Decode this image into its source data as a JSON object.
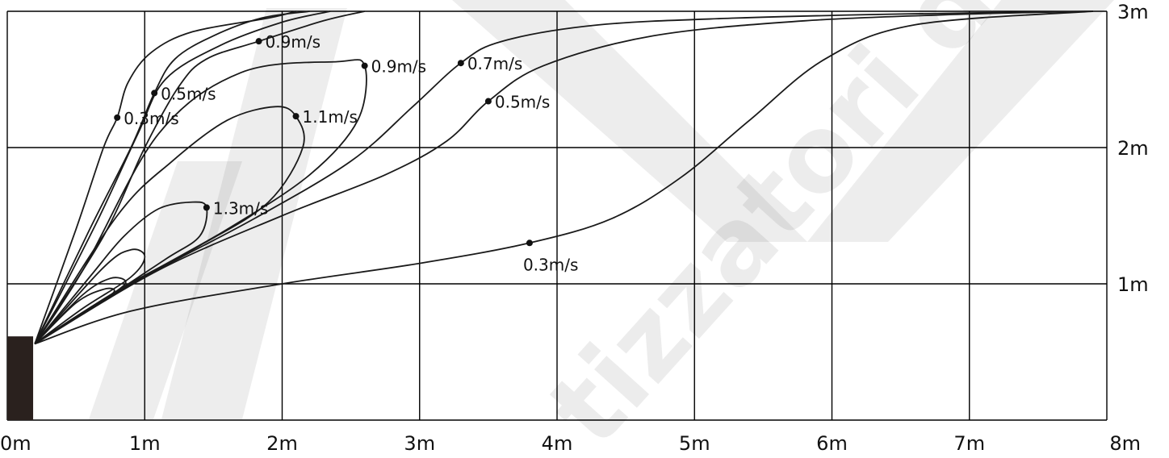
{
  "chart_data": {
    "type": "line",
    "title": "",
    "xlabel": "",
    "ylabel": "",
    "xlim": [
      0,
      8
    ],
    "ylim": [
      0,
      3
    ],
    "grid": true,
    "x_ticks": [
      "0m",
      "1m",
      "2m",
      "3m",
      "4m",
      "5m",
      "6m",
      "7m",
      "8m"
    ],
    "y_ticks": [
      "1m",
      "2m",
      "3m"
    ],
    "source_marker": {
      "x": [
        0,
        0.2
      ],
      "y": [
        0,
        0.65
      ]
    },
    "series": [
      {
        "points": [
          [
            0.2,
            0.56
          ],
          [
            0.45,
            0.72
          ],
          [
            0.7,
            0.88
          ],
          [
            0.78,
            0.95
          ],
          [
            0.7,
            0.96
          ],
          [
            0.5,
            0.86
          ],
          [
            0.2,
            0.56
          ]
        ]
      },
      {
        "points": [
          [
            0.2,
            0.56
          ],
          [
            0.5,
            0.76
          ],
          [
            0.8,
            0.95
          ],
          [
            0.86,
            1.02
          ],
          [
            0.75,
            1.04
          ],
          [
            0.55,
            0.92
          ],
          [
            0.2,
            0.56
          ]
        ]
      },
      {
        "points": [
          [
            0.2,
            0.56
          ],
          [
            0.55,
            0.82
          ],
          [
            0.9,
            1.05
          ],
          [
            1.0,
            1.2
          ],
          [
            0.9,
            1.25
          ],
          [
            0.7,
            1.12
          ],
          [
            0.2,
            0.56
          ]
        ]
      },
      {
        "label": "1.3m/s",
        "label_point": [
          1.45,
          1.56
        ],
        "points": [
          [
            0.2,
            0.56
          ],
          [
            0.7,
            0.88
          ],
          [
            1.15,
            1.18
          ],
          [
            1.4,
            1.35
          ],
          [
            1.45,
            1.56
          ],
          [
            1.35,
            1.6
          ],
          [
            1.1,
            1.55
          ],
          [
            0.85,
            1.35
          ],
          [
            0.6,
            1.05
          ],
          [
            0.2,
            0.56
          ]
        ]
      },
      {
        "label": "1.1m/s",
        "label_point": [
          2.1,
          2.23
        ],
        "points": [
          [
            0.2,
            0.56
          ],
          [
            0.8,
            0.95
          ],
          [
            1.4,
            1.28
          ],
          [
            1.9,
            1.6
          ],
          [
            2.15,
            2.0
          ],
          [
            2.1,
            2.23
          ],
          [
            1.95,
            2.3
          ],
          [
            1.6,
            2.2
          ],
          [
            1.2,
            1.9
          ],
          [
            0.8,
            1.5
          ],
          [
            0.2,
            0.56
          ]
        ]
      },
      {
        "label": "0.9m/s",
        "label_point": [
          2.6,
          2.6
        ],
        "points": [
          [
            0.2,
            0.56
          ],
          [
            0.9,
            1.0
          ],
          [
            1.6,
            1.4
          ],
          [
            2.2,
            1.8
          ],
          [
            2.55,
            2.2
          ],
          [
            2.6,
            2.6
          ],
          [
            2.4,
            2.63
          ],
          [
            1.7,
            2.55
          ],
          [
            1.1,
            2.1
          ],
          [
            0.55,
            1.1
          ],
          [
            0.2,
            0.56
          ]
        ]
      },
      {
        "label": "0.7m/s",
        "label_point": [
          3.3,
          2.62
        ],
        "points": [
          [
            0.2,
            0.56
          ],
          [
            1.0,
            1.05
          ],
          [
            1.8,
            1.48
          ],
          [
            2.5,
            1.9
          ],
          [
            2.95,
            2.3
          ],
          [
            3.3,
            2.62
          ],
          [
            3.6,
            2.78
          ],
          [
            4.3,
            2.9
          ],
          [
            5.3,
            2.95
          ],
          [
            6.5,
            2.98
          ],
          [
            7.9,
            3.0
          ]
        ]
      },
      {
        "label": "0.5m/s",
        "label_point": [
          3.5,
          2.34
        ],
        "points": [
          [
            0.2,
            0.56
          ],
          [
            1.1,
            1.1
          ],
          [
            2.0,
            1.5
          ],
          [
            2.75,
            1.8
          ],
          [
            3.2,
            2.05
          ],
          [
            3.5,
            2.34
          ],
          [
            3.9,
            2.6
          ],
          [
            4.7,
            2.82
          ],
          [
            5.8,
            2.93
          ],
          [
            7.0,
            2.98
          ],
          [
            7.9,
            3.0
          ]
        ]
      },
      {
        "label": "0.3m/s",
        "label_point": [
          3.8,
          1.3
        ],
        "points": [
          [
            0.2,
            0.56
          ],
          [
            0.9,
            0.8
          ],
          [
            2.0,
            1.0
          ],
          [
            3.0,
            1.15
          ],
          [
            3.8,
            1.3
          ],
          [
            4.4,
            1.48
          ],
          [
            4.9,
            1.78
          ],
          [
            5.4,
            2.2
          ],
          [
            5.95,
            2.65
          ],
          [
            6.6,
            2.9
          ],
          [
            7.9,
            3.0
          ]
        ]
      },
      {
        "label": "0.3m/s",
        "label_point": [
          0.8,
          2.22
        ],
        "points": [
          [
            0.2,
            0.56
          ],
          [
            0.5,
            1.4
          ],
          [
            0.7,
            2.0
          ],
          [
            0.8,
            2.22
          ],
          [
            0.88,
            2.48
          ],
          [
            1.05,
            2.7
          ],
          [
            1.35,
            2.85
          ],
          [
            1.9,
            2.95
          ],
          [
            2.1,
            3.0
          ]
        ]
      },
      {
        "label": "0.5m/s",
        "label_point": [
          1.07,
          2.4
        ],
        "points": [
          [
            0.2,
            0.56
          ],
          [
            0.6,
            1.4
          ],
          [
            0.9,
            2.0
          ],
          [
            1.07,
            2.4
          ],
          [
            1.22,
            2.65
          ],
          [
            1.5,
            2.82
          ],
          [
            1.85,
            2.95
          ],
          [
            2.2,
            3.0
          ]
        ]
      },
      {
        "label": "0.9m/s",
        "label_point": [
          1.83,
          2.78
        ],
        "points": [
          [
            0.2,
            0.56
          ],
          [
            0.7,
            1.35
          ],
          [
            1.0,
            2.0
          ],
          [
            1.25,
            2.45
          ],
          [
            1.45,
            2.65
          ],
          [
            1.83,
            2.78
          ],
          [
            2.3,
            2.93
          ],
          [
            2.6,
            3.0
          ]
        ]
      },
      {
        "points": [
          [
            0.2,
            0.56
          ],
          [
            0.65,
            1.45
          ],
          [
            0.95,
            2.1
          ],
          [
            1.15,
            2.5
          ],
          [
            1.55,
            2.75
          ],
          [
            2.0,
            2.92
          ],
          [
            2.35,
            3.0
          ]
        ]
      }
    ]
  }
}
